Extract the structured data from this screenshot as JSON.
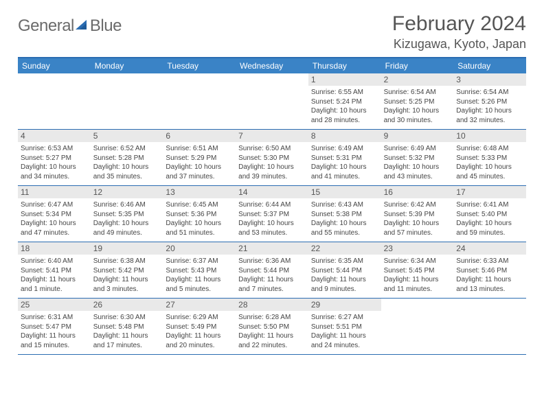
{
  "logo": {
    "text1": "General",
    "text2": "Blue"
  },
  "header": {
    "month_title": "February 2024",
    "location": "Kizugawa, Kyoto, Japan"
  },
  "colors": {
    "header_bar": "#3a83c6",
    "border": "#2a6cb1",
    "daynum_bg": "#e9e9e9",
    "logo_gray": "#6b6b6b",
    "logo_blue": "#2a6cb1"
  },
  "weekdays": [
    "Sunday",
    "Monday",
    "Tuesday",
    "Wednesday",
    "Thursday",
    "Friday",
    "Saturday"
  ],
  "weeks": [
    [
      {
        "empty": true
      },
      {
        "empty": true
      },
      {
        "empty": true
      },
      {
        "empty": true
      },
      {
        "num": "1",
        "sunrise": "Sunrise: 6:55 AM",
        "sunset": "Sunset: 5:24 PM",
        "daylight": "Daylight: 10 hours and 28 minutes."
      },
      {
        "num": "2",
        "sunrise": "Sunrise: 6:54 AM",
        "sunset": "Sunset: 5:25 PM",
        "daylight": "Daylight: 10 hours and 30 minutes."
      },
      {
        "num": "3",
        "sunrise": "Sunrise: 6:54 AM",
        "sunset": "Sunset: 5:26 PM",
        "daylight": "Daylight: 10 hours and 32 minutes."
      }
    ],
    [
      {
        "num": "4",
        "sunrise": "Sunrise: 6:53 AM",
        "sunset": "Sunset: 5:27 PM",
        "daylight": "Daylight: 10 hours and 34 minutes."
      },
      {
        "num": "5",
        "sunrise": "Sunrise: 6:52 AM",
        "sunset": "Sunset: 5:28 PM",
        "daylight": "Daylight: 10 hours and 35 minutes."
      },
      {
        "num": "6",
        "sunrise": "Sunrise: 6:51 AM",
        "sunset": "Sunset: 5:29 PM",
        "daylight": "Daylight: 10 hours and 37 minutes."
      },
      {
        "num": "7",
        "sunrise": "Sunrise: 6:50 AM",
        "sunset": "Sunset: 5:30 PM",
        "daylight": "Daylight: 10 hours and 39 minutes."
      },
      {
        "num": "8",
        "sunrise": "Sunrise: 6:49 AM",
        "sunset": "Sunset: 5:31 PM",
        "daylight": "Daylight: 10 hours and 41 minutes."
      },
      {
        "num": "9",
        "sunrise": "Sunrise: 6:49 AM",
        "sunset": "Sunset: 5:32 PM",
        "daylight": "Daylight: 10 hours and 43 minutes."
      },
      {
        "num": "10",
        "sunrise": "Sunrise: 6:48 AM",
        "sunset": "Sunset: 5:33 PM",
        "daylight": "Daylight: 10 hours and 45 minutes."
      }
    ],
    [
      {
        "num": "11",
        "sunrise": "Sunrise: 6:47 AM",
        "sunset": "Sunset: 5:34 PM",
        "daylight": "Daylight: 10 hours and 47 minutes."
      },
      {
        "num": "12",
        "sunrise": "Sunrise: 6:46 AM",
        "sunset": "Sunset: 5:35 PM",
        "daylight": "Daylight: 10 hours and 49 minutes."
      },
      {
        "num": "13",
        "sunrise": "Sunrise: 6:45 AM",
        "sunset": "Sunset: 5:36 PM",
        "daylight": "Daylight: 10 hours and 51 minutes."
      },
      {
        "num": "14",
        "sunrise": "Sunrise: 6:44 AM",
        "sunset": "Sunset: 5:37 PM",
        "daylight": "Daylight: 10 hours and 53 minutes."
      },
      {
        "num": "15",
        "sunrise": "Sunrise: 6:43 AM",
        "sunset": "Sunset: 5:38 PM",
        "daylight": "Daylight: 10 hours and 55 minutes."
      },
      {
        "num": "16",
        "sunrise": "Sunrise: 6:42 AM",
        "sunset": "Sunset: 5:39 PM",
        "daylight": "Daylight: 10 hours and 57 minutes."
      },
      {
        "num": "17",
        "sunrise": "Sunrise: 6:41 AM",
        "sunset": "Sunset: 5:40 PM",
        "daylight": "Daylight: 10 hours and 59 minutes."
      }
    ],
    [
      {
        "num": "18",
        "sunrise": "Sunrise: 6:40 AM",
        "sunset": "Sunset: 5:41 PM",
        "daylight": "Daylight: 11 hours and 1 minute."
      },
      {
        "num": "19",
        "sunrise": "Sunrise: 6:38 AM",
        "sunset": "Sunset: 5:42 PM",
        "daylight": "Daylight: 11 hours and 3 minutes."
      },
      {
        "num": "20",
        "sunrise": "Sunrise: 6:37 AM",
        "sunset": "Sunset: 5:43 PM",
        "daylight": "Daylight: 11 hours and 5 minutes."
      },
      {
        "num": "21",
        "sunrise": "Sunrise: 6:36 AM",
        "sunset": "Sunset: 5:44 PM",
        "daylight": "Daylight: 11 hours and 7 minutes."
      },
      {
        "num": "22",
        "sunrise": "Sunrise: 6:35 AM",
        "sunset": "Sunset: 5:44 PM",
        "daylight": "Daylight: 11 hours and 9 minutes."
      },
      {
        "num": "23",
        "sunrise": "Sunrise: 6:34 AM",
        "sunset": "Sunset: 5:45 PM",
        "daylight": "Daylight: 11 hours and 11 minutes."
      },
      {
        "num": "24",
        "sunrise": "Sunrise: 6:33 AM",
        "sunset": "Sunset: 5:46 PM",
        "daylight": "Daylight: 11 hours and 13 minutes."
      }
    ],
    [
      {
        "num": "25",
        "sunrise": "Sunrise: 6:31 AM",
        "sunset": "Sunset: 5:47 PM",
        "daylight": "Daylight: 11 hours and 15 minutes."
      },
      {
        "num": "26",
        "sunrise": "Sunrise: 6:30 AM",
        "sunset": "Sunset: 5:48 PM",
        "daylight": "Daylight: 11 hours and 17 minutes."
      },
      {
        "num": "27",
        "sunrise": "Sunrise: 6:29 AM",
        "sunset": "Sunset: 5:49 PM",
        "daylight": "Daylight: 11 hours and 20 minutes."
      },
      {
        "num": "28",
        "sunrise": "Sunrise: 6:28 AM",
        "sunset": "Sunset: 5:50 PM",
        "daylight": "Daylight: 11 hours and 22 minutes."
      },
      {
        "num": "29",
        "sunrise": "Sunrise: 6:27 AM",
        "sunset": "Sunset: 5:51 PM",
        "daylight": "Daylight: 11 hours and 24 minutes."
      },
      {
        "empty": true
      },
      {
        "empty": true
      }
    ]
  ]
}
